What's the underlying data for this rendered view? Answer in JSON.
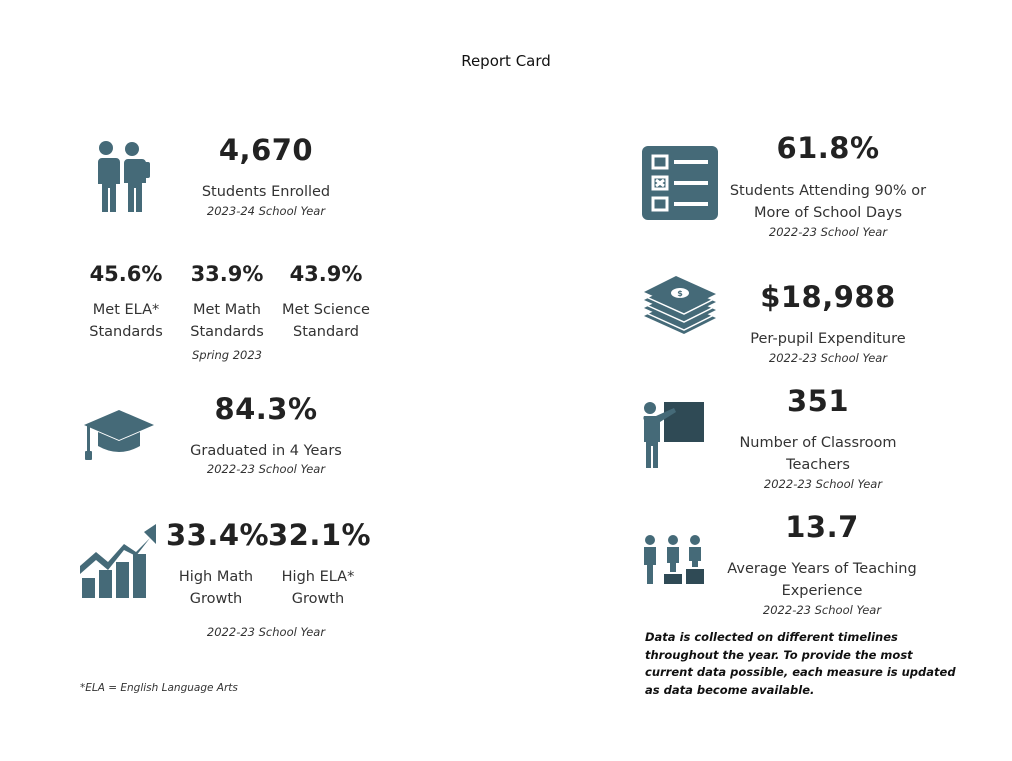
{
  "header": {
    "title": "Report Card"
  },
  "left": {
    "enrolled": {
      "value": "4,670",
      "label": "Students Enrolled",
      "year": "2023-24 School Year"
    },
    "standards": [
      {
        "value": "45.6%",
        "line1": "Met ELA*",
        "line2": "Standards"
      },
      {
        "value": "33.9%",
        "line1": "Met Math",
        "line2": "Standards"
      },
      {
        "value": "43.9%",
        "line1": "Met Science",
        "line2": "Standard"
      }
    ],
    "standards_period": "Spring 2023",
    "graduated": {
      "value": "84.3%",
      "label": "Graduated in 4 Years",
      "year": "2022-23 School Year"
    },
    "growth": [
      {
        "value": "33.4%",
        "line1": "High Math",
        "line2": "Growth"
      },
      {
        "value": "32.1%",
        "line1": "High ELA*",
        "line2": "Growth"
      }
    ],
    "growth_year": "2022-23 School Year",
    "footnote": "*ELA = English Language Arts"
  },
  "right": {
    "attendance": {
      "value": "61.8%",
      "line1": "Students Attending 90% or",
      "line2": "More of School Days",
      "year": "2022-23 School Year"
    },
    "expenditure": {
      "value": "$18,988",
      "label": "Per-pupil Expenditure",
      "year": "2022-23 School Year"
    },
    "teachers": {
      "value": "351",
      "line1": "Number of Classroom",
      "line2": "Teachers",
      "year": "2022-23 School Year"
    },
    "experience": {
      "value": "13.7",
      "line1": "Average Years of Teaching",
      "line2": "Experience",
      "year": "2022-23 School Year"
    },
    "note": [
      "Data is collected on different timelines",
      "throughout the year. To provide the most",
      "current data possible, each measure is updated",
      "as data become available."
    ]
  },
  "colors": {
    "icon": "#456a78",
    "icon_dark": "#2f4a55"
  }
}
